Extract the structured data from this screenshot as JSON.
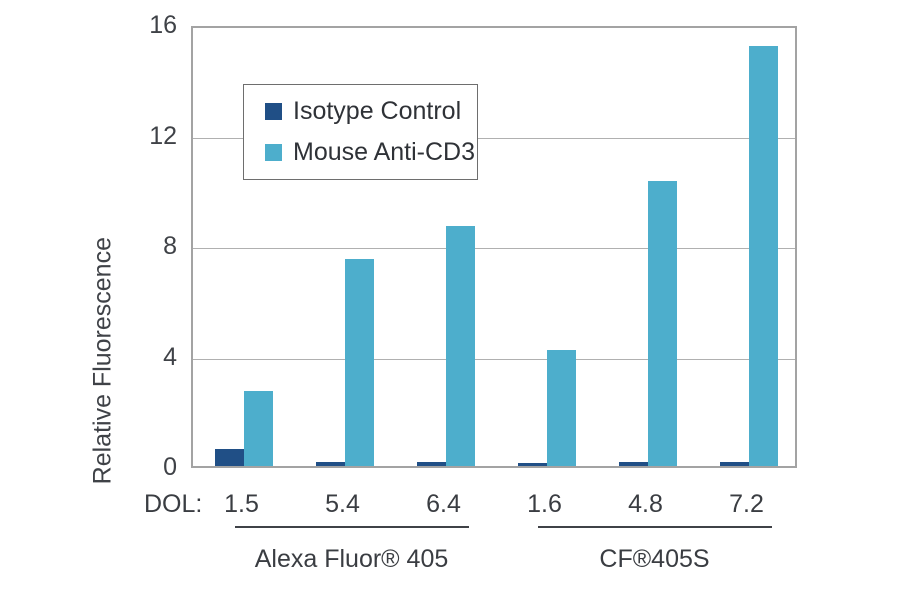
{
  "chart_data": {
    "type": "bar",
    "title": "",
    "ylabel": "Relative Fluorescence",
    "xlabel": "DOL:",
    "ylim": [
      0,
      16
    ],
    "yticks": [
      0,
      4,
      8,
      12,
      16
    ],
    "grid": true,
    "legend_position": "upper-left-inside",
    "categories": [
      "1.5",
      "5.4",
      "6.4",
      "1.6",
      "4.8",
      "7.2"
    ],
    "groups": [
      {
        "label": "Alexa Fluor® 405",
        "categories": [
          "1.5",
          "5.4",
          "6.4"
        ]
      },
      {
        "label": "CF®405S",
        "categories": [
          "1.6",
          "4.8",
          "7.2"
        ]
      }
    ],
    "series": [
      {
        "name": "Isotype Control",
        "color": "#204F86",
        "values": [
          0.6,
          0.15,
          0.15,
          0.1,
          0.15,
          0.15
        ]
      },
      {
        "name": "Mouse Anti-CD3",
        "color": "#4DAECC",
        "values": [
          2.7,
          7.5,
          8.7,
          4.2,
          10.3,
          15.2
        ]
      }
    ],
    "colors": {
      "grid_line": "#b0b0b0",
      "plot_border": "#a3a3a3",
      "text": "#3a3d42"
    }
  }
}
